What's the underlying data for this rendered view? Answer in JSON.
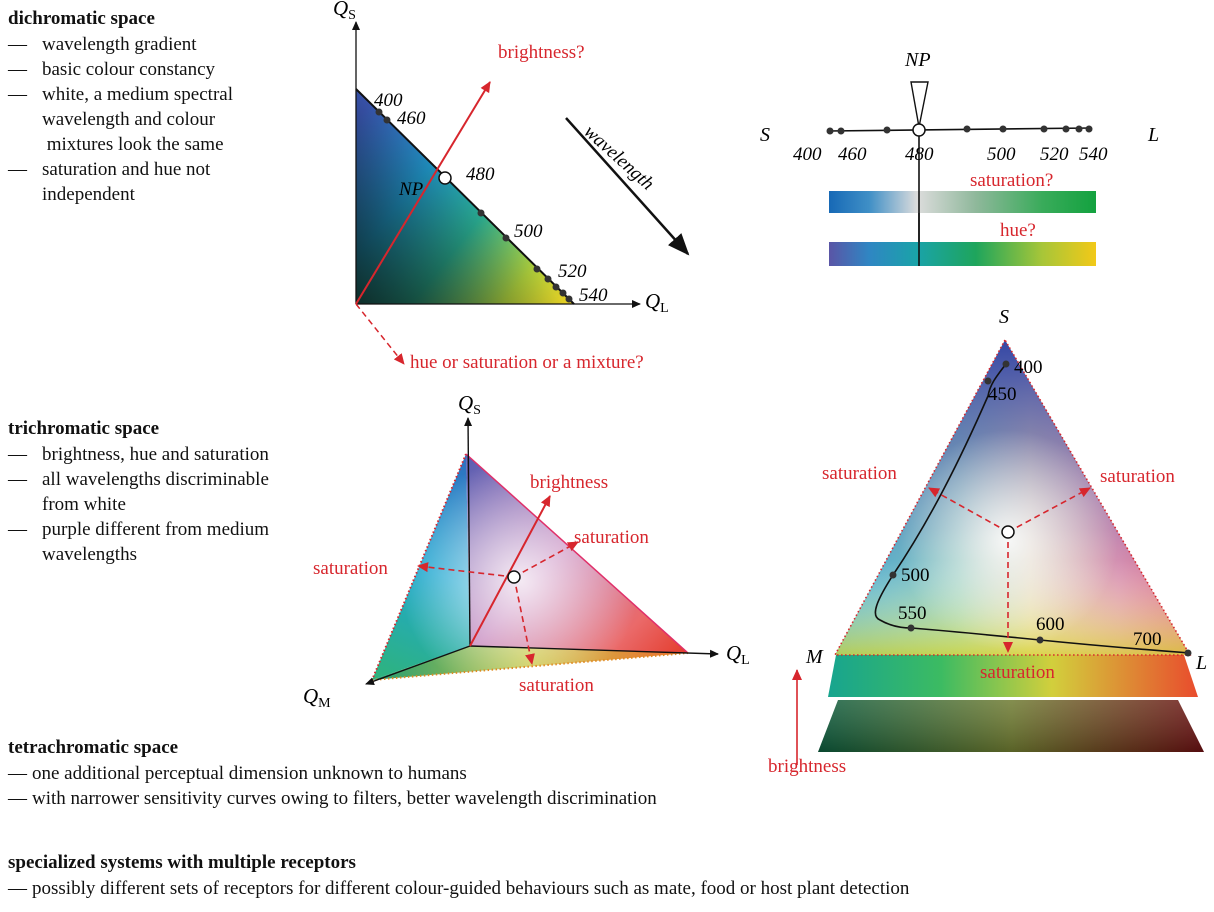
{
  "sections": {
    "dichromatic": {
      "title": "dichromatic space",
      "items": [
        "wavelength gradient",
        "basic colour constancy",
        "white, a medium spectral\nwavelength and colour\n mixtures look the same",
        "saturation and hue not\nindependent"
      ]
    },
    "trichromatic": {
      "title": "trichromatic space",
      "items": [
        "brightness, hue and saturation",
        "all wavelengths discriminable\nfrom white",
        "purple different from medium\nwavelengths"
      ]
    },
    "tetrachromatic": {
      "title": "tetrachromatic space",
      "items": [
        "one additional perceptual dimension unknown to humans",
        "with narrower sensitivity curves owing to filters, better wavelength discrimination"
      ]
    },
    "specialized": {
      "title": "specialized systems with multiple receptors",
      "items": [
        "possibly different sets of receptors for different colour-guided behaviours such as mate, food or host plant detection"
      ]
    }
  },
  "dash": "—",
  "dichromatic_plot": {
    "axis_y": "Q",
    "axis_y_sub": "S",
    "axis_x": "Q",
    "axis_x_sub": "L",
    "brightness_label": "brightness?",
    "wavelength_label": "wavelength",
    "np_label": "NP",
    "mixture_label": "hue or saturation or a mixture?",
    "wavelengths": [
      "400",
      "460",
      "480",
      "500",
      "520",
      "540"
    ]
  },
  "line_diagram": {
    "np_label": "NP",
    "left_label": "S",
    "right_label": "L",
    "wavelengths": [
      "400",
      "460",
      "480",
      "500",
      "520",
      "540"
    ],
    "saturation_label": "saturation?",
    "hue_label": "hue?"
  },
  "trichromatic_plot": {
    "axis_s": "Q",
    "axis_s_sub": "S",
    "axis_l": "Q",
    "axis_l_sub": "L",
    "axis_m": "Q",
    "axis_m_sub": "M",
    "brightness_label": "brightness",
    "saturation_right": "saturation",
    "saturation_left": "saturation",
    "saturation_bottom": "saturation"
  },
  "triangle_plot": {
    "top_label": "S",
    "left_label": "M",
    "right_label": "L",
    "wavelengths": [
      "400",
      "450",
      "500",
      "550",
      "600",
      "700"
    ],
    "saturation_left": "saturation",
    "saturation_right": "saturation",
    "saturation_bottom": "saturation",
    "brightness_label": "brightness"
  },
  "colors": {
    "accent_red": "#d7262d"
  }
}
